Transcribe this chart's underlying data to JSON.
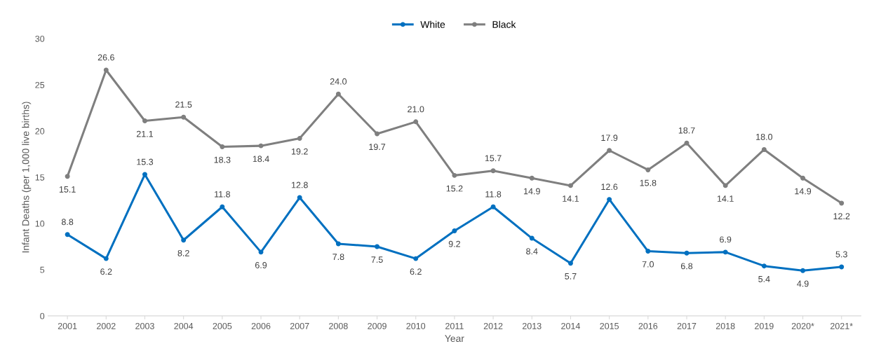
{
  "chart_data": {
    "type": "line",
    "xlabel": "Year",
    "ylabel": "Infant Deaths (per 1,000 live births)",
    "categories": [
      "2001",
      "2002",
      "2003",
      "2004",
      "2005",
      "2006",
      "2007",
      "2008",
      "2009",
      "2010",
      "2011",
      "2012",
      "2013",
      "2014",
      "2015",
      "2016",
      "2017",
      "2018",
      "2019",
      "2020*",
      "2021*"
    ],
    "series": [
      {
        "name": "White",
        "color": "#0070c0",
        "values": [
          8.8,
          6.2,
          15.3,
          8.2,
          11.8,
          6.9,
          12.8,
          7.8,
          7.5,
          6.2,
          9.2,
          11.8,
          8.4,
          5.7,
          12.6,
          7.0,
          6.8,
          6.9,
          5.4,
          4.9,
          5.3
        ],
        "value_labels": [
          "8.8",
          "6.2",
          "15.3",
          "8.2",
          "11.8",
          "6.9",
          "12.8",
          "7.8",
          "7.5",
          "6.2",
          "9.2",
          "11.8",
          "8.4",
          "5.7",
          "12.6",
          "7.0",
          "6.8",
          "6.9",
          "5.4",
          "4.9",
          "5.3"
        ]
      },
      {
        "name": "Black",
        "color": "#7f7f7f",
        "values": [
          15.1,
          26.6,
          21.1,
          21.5,
          18.3,
          18.4,
          19.2,
          24.0,
          19.7,
          21.0,
          15.2,
          15.7,
          14.9,
          14.1,
          17.9,
          15.8,
          18.7,
          14.1,
          18.0,
          14.9,
          12.2
        ],
        "value_labels": [
          "15.1",
          "26.6",
          "21.1",
          "21.5",
          "18.3",
          "18.4",
          "19.2",
          "24.0",
          "19.7",
          "21.0",
          "15.2",
          "15.7",
          "14.9",
          "14.1",
          "17.9",
          "15.8",
          "18.7",
          "14.1",
          "18.0",
          "14.9",
          "12.2"
        ]
      }
    ],
    "ylim": [
      0,
      30
    ],
    "yticks": [
      0,
      5,
      10,
      15,
      20,
      25,
      30
    ],
    "grid": false,
    "legend": "top",
    "marker": "circle",
    "line_style": "solid"
  }
}
